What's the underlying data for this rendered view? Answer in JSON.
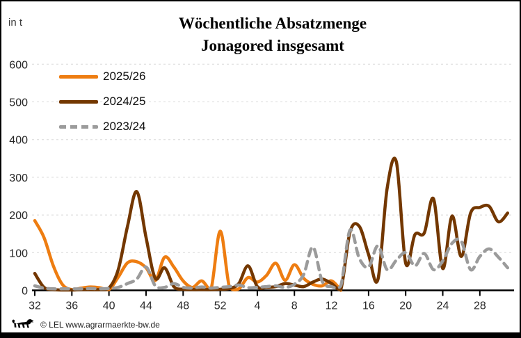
{
  "title": {
    "line1": "Wöchentliche Absatzmenge",
    "line2": "Jonagored insgesamt"
  },
  "footer": {
    "copyright": "© LEL www.agrarmaerkte-bw.de",
    "logo": "bw-lion-logo"
  },
  "colors": {
    "axis": "#000000",
    "tick_label": "#262626",
    "grid": "#d8d8d8",
    "orange": "#ee7d11",
    "brown": "#733700",
    "gray": "#9b9b9b"
  },
  "chart_data": {
    "type": "line",
    "title": "Wöchentliche Absatzmenge Jonagored insgesamt",
    "xlabel": "",
    "ylabel": "in t",
    "ylim": [
      0,
      600
    ],
    "yticks": [
      0,
      100,
      200,
      300,
      400,
      500,
      600
    ],
    "grid": "horizontal-dashed",
    "legend_position": "top-left",
    "x_unit": "calendar week",
    "categories": [
      32,
      33,
      34,
      35,
      36,
      37,
      38,
      39,
      40,
      41,
      42,
      43,
      44,
      45,
      46,
      47,
      48,
      49,
      50,
      51,
      52,
      1,
      2,
      3,
      4,
      5,
      6,
      7,
      8,
      9,
      10,
      11,
      12,
      13,
      14,
      15,
      16,
      17,
      18,
      19,
      20,
      21,
      22,
      23,
      24,
      25,
      26,
      27,
      28,
      29,
      30,
      31
    ],
    "xtick_every": 4,
    "xtick_labels": [
      "32",
      "36",
      "40",
      "44",
      "48",
      "52",
      "4",
      "8",
      "12",
      "16",
      "20",
      "24",
      "28"
    ],
    "series": [
      {
        "name": "2025/26",
        "color": "#ee7d11",
        "style": "solid",
        "values": [
          185,
          140,
          65,
          15,
          2,
          6,
          9,
          7,
          2,
          35,
          73,
          76,
          60,
          26,
          88,
          62,
          25,
          8,
          25,
          3,
          157,
          8,
          4,
          34,
          22,
          40,
          72,
          27,
          68,
          32,
          16,
          12,
          25,
          0,
          null,
          null,
          null,
          null,
          null,
          null,
          null,
          null,
          null,
          null,
          null,
          null,
          null,
          null,
          null,
          null,
          null,
          null
        ]
      },
      {
        "name": "2024/25",
        "color": "#733700",
        "style": "solid",
        "values": [
          45,
          8,
          2,
          1,
          1,
          2,
          2,
          2,
          6,
          55,
          170,
          262,
          140,
          32,
          60,
          10,
          3,
          2,
          2,
          2,
          3,
          5,
          18,
          65,
          10,
          8,
          10,
          18,
          14,
          10,
          22,
          30,
          18,
          2,
          155,
          170,
          95,
          28,
          270,
          340,
          72,
          148,
          152,
          243,
          58,
          197,
          90,
          205,
          220,
          223,
          182,
          205
        ]
      },
      {
        "name": "2023/24",
        "color": "#9b9b9b",
        "style": "dashed",
        "values": [
          12,
          6,
          4,
          4,
          4,
          4,
          5,
          4,
          5,
          8,
          18,
          30,
          62,
          12,
          8,
          18,
          8,
          6,
          9,
          6,
          8,
          10,
          14,
          7,
          8,
          10,
          12,
          8,
          16,
          42,
          115,
          24,
          10,
          12,
          160,
          85,
          62,
          118,
          55,
          80,
          100,
          65,
          98,
          55,
          78,
          125,
          130,
          55,
          90,
          110,
          88,
          60
        ]
      }
    ]
  }
}
